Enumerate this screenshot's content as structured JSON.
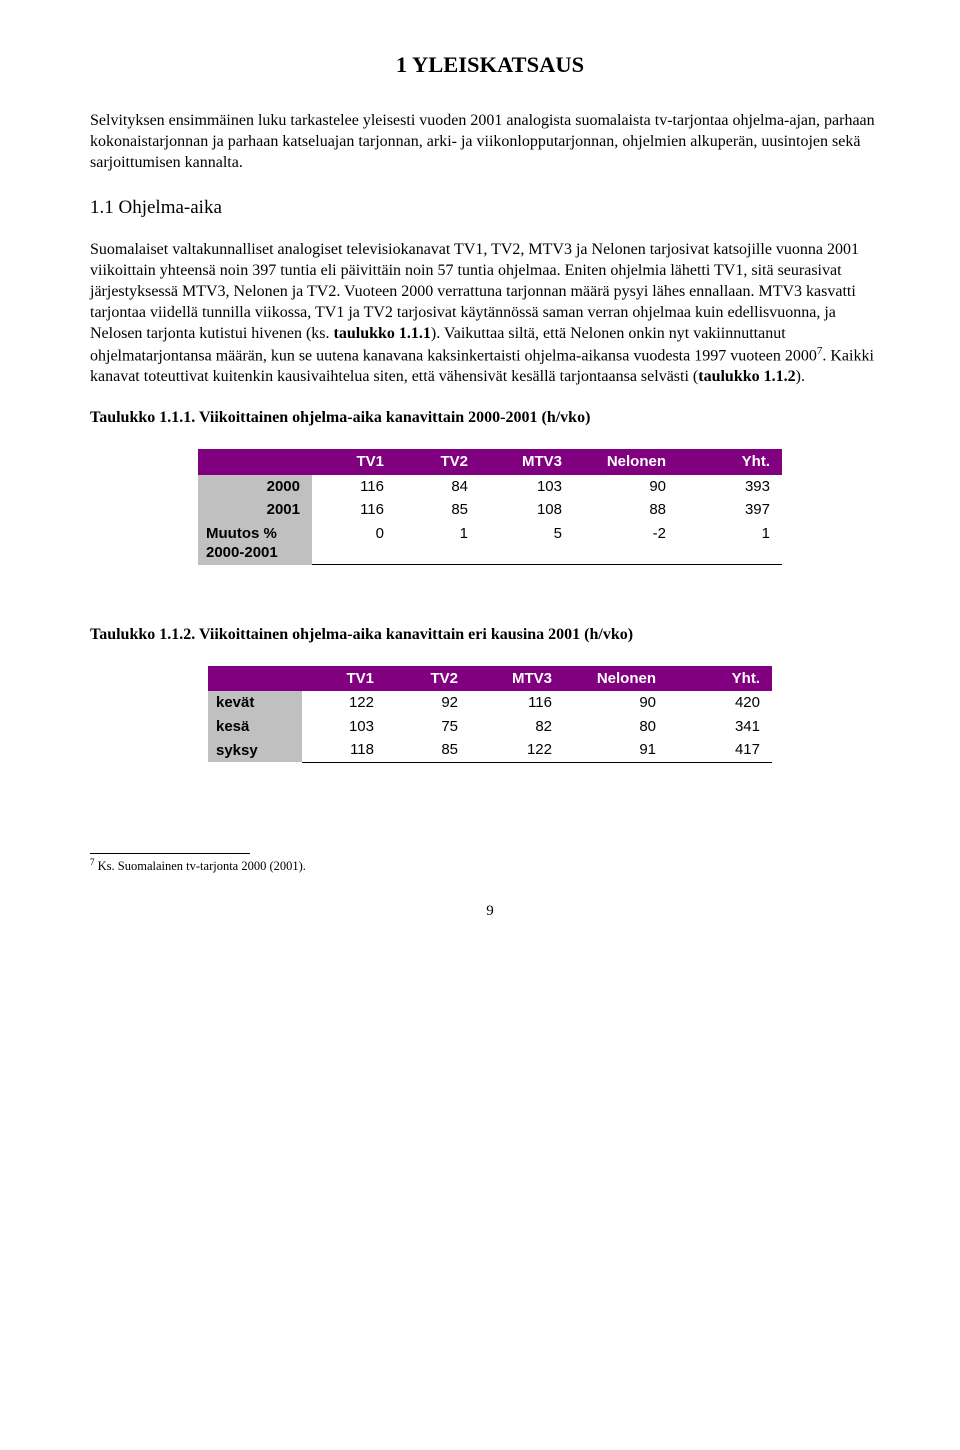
{
  "title": "1 YLEISKATSAUS",
  "intro": "Selvityksen ensimmäinen luku tarkastelee yleisesti vuoden 2001 analogista suomalaista tv-tarjontaa ohjelma-ajan, parhaan kokonaistarjonnan ja parhaan katseluajan tarjonnan, arki- ja viikonlopputarjonnan, ohjelmien alkuperän, uusintojen sekä sarjoittumisen kannalta.",
  "section_heading": "1.1 Ohjelma-aika",
  "body_html": "Suomalaiset valtakunnalliset analogiset televisiokanavat TV1, TV2, MTV3 ja Nelonen tarjosivat katsojille vuonna 2001 viikoittain yhteensä noin 397 tuntia eli päivittäin noin 57 tuntia ohjelmaa. Eniten ohjelmia lähetti TV1, sitä seurasivat järjestyksessä MTV3, Nelonen ja TV2. Vuoteen 2000 verrattuna tarjonnan määrä pysyi lähes ennallaan. MTV3 kasvatti tarjontaa viidellä tunnilla viikossa, TV1 ja TV2 tarjosivat käytännössä saman verran ohjelmaa kuin edellisvuonna, ja Nelosen tarjonta kutistui hivenen (ks. <b>taulukko 1.1.1</b>). Vaikuttaa siltä, että Nelonen onkin nyt vakiinnuttanut ohjelmatarjontansa määrän, kun se uutena kanavana kaksinkertaisti ohjelma-aikansa vuodesta 1997 vuoteen 2000<sup>7</sup>. Kaikki kanavat toteuttivat kuitenkin kausivaihtelua siten, että vähensivät kesällä tarjontaansa selvästi (<b>taulukko 1.1.2</b>).",
  "table1": {
    "title": "Taulukko 1.1.1. Viikoittainen ohjelma-aika kanavittain 2000-2001 (h/vko)",
    "header_bg": "#800080",
    "header_fg": "#ffffff",
    "rowhead_bg": "#c0c0c0",
    "columns": [
      "TV1",
      "TV2",
      "MTV3",
      "Nelonen",
      "Yht."
    ],
    "rows": [
      {
        "label": "2000",
        "label_align": "right",
        "values": [
          "116",
          "84",
          "103",
          "90",
          "393"
        ]
      },
      {
        "label": "2001",
        "label_align": "right",
        "values": [
          "116",
          "85",
          "108",
          "88",
          "397"
        ]
      },
      {
        "label": "Muutos %\n2000-2001",
        "label_align": "left",
        "values": [
          "0",
          "1",
          "5",
          "-2",
          "1"
        ]
      }
    ]
  },
  "table2": {
    "title": "Taulukko 1.1.2.  Viikoittainen ohjelma-aika kanavittain eri kausina 2001 (h/vko)",
    "header_bg": "#800080",
    "header_fg": "#ffffff",
    "rowhead_bg": "#c0c0c0",
    "columns": [
      "TV1",
      "TV2",
      "MTV3",
      "Nelonen",
      "Yht."
    ],
    "rows": [
      {
        "label": "kevät",
        "values": [
          "122",
          "92",
          "116",
          "90",
          "420"
        ]
      },
      {
        "label": "kesä",
        "values": [
          "103",
          "75",
          "82",
          "80",
          "341"
        ]
      },
      {
        "label": "syksy",
        "values": [
          "118",
          "85",
          "122",
          "91",
          "417"
        ]
      }
    ]
  },
  "footnote": {
    "marker": "7",
    "text": " Ks. Suomalainen tv-tarjonta 2000 (2001)."
  },
  "page_number": "9"
}
